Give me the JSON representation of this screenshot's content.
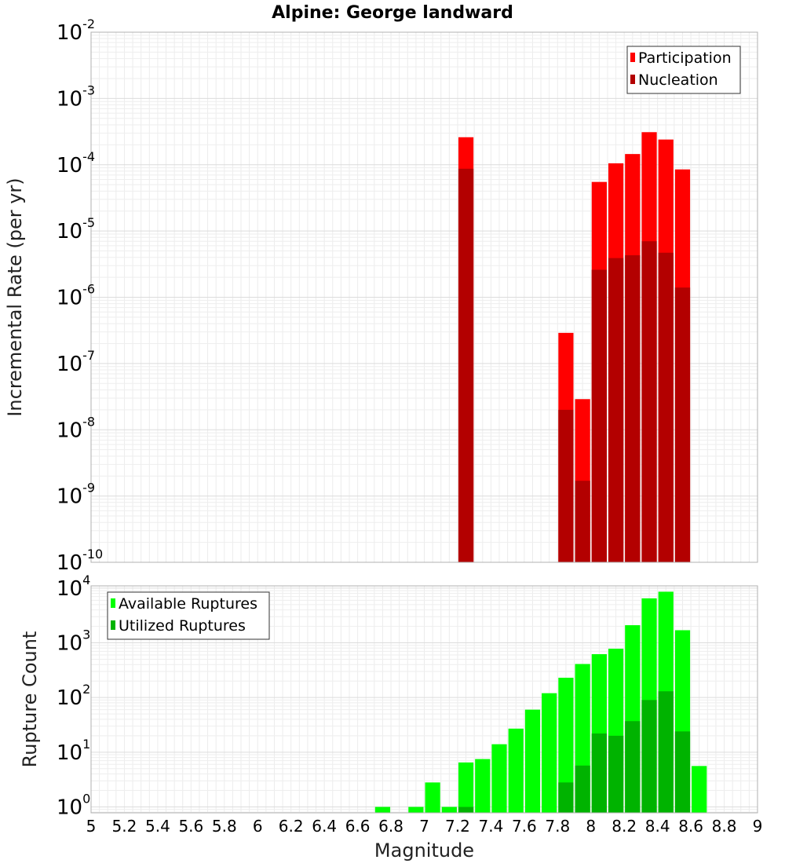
{
  "title": "Alpine: George landward",
  "chart_data": [
    {
      "type": "bar",
      "name": "rate-panel",
      "ylabel": "Incremental Rate (per yr)",
      "yscale": "log",
      "ylim": [
        1e-10,
        0.01
      ],
      "xlim": [
        5,
        9
      ],
      "grid": true,
      "legend_position": "top-right",
      "y_ticks": [
        {
          "base": "10",
          "exp": "-10"
        },
        {
          "base": "10",
          "exp": "-9"
        },
        {
          "base": "10",
          "exp": "-8"
        },
        {
          "base": "10",
          "exp": "-7"
        },
        {
          "base": "10",
          "exp": "-6"
        },
        {
          "base": "10",
          "exp": "-5"
        },
        {
          "base": "10",
          "exp": "-4"
        },
        {
          "base": "10",
          "exp": "-3"
        },
        {
          "base": "10",
          "exp": "-2"
        }
      ],
      "series": [
        {
          "name": "Participation",
          "color": "#ff0000",
          "points": [
            {
              "x": 7.25,
              "y": 0.00026
            },
            {
              "x": 7.85,
              "y": 2.9e-07
            },
            {
              "x": 7.95,
              "y": 2.9e-08
            },
            {
              "x": 8.05,
              "y": 5.5e-05
            },
            {
              "x": 8.15,
              "y": 0.000105
            },
            {
              "x": 8.25,
              "y": 0.000145
            },
            {
              "x": 8.35,
              "y": 0.00031
            },
            {
              "x": 8.45,
              "y": 0.00024
            },
            {
              "x": 8.55,
              "y": 8.5e-05
            }
          ]
        },
        {
          "name": "Nucleation",
          "color": "#b30000",
          "points": [
            {
              "x": 7.25,
              "y": 8.7e-05
            },
            {
              "x": 7.85,
              "y": 2e-08
            },
            {
              "x": 7.95,
              "y": 1.7e-09
            },
            {
              "x": 8.05,
              "y": 2.6e-06
            },
            {
              "x": 8.15,
              "y": 3.9e-06
            },
            {
              "x": 8.25,
              "y": 4.3e-06
            },
            {
              "x": 8.35,
              "y": 7e-06
            },
            {
              "x": 8.45,
              "y": 4.7e-06
            },
            {
              "x": 8.55,
              "y": 1.4e-06
            }
          ]
        }
      ]
    },
    {
      "type": "bar",
      "name": "count-panel",
      "xlabel": "Magnitude",
      "ylabel": "Rupture Count",
      "yscale": "log",
      "ylim": [
        0.78,
        11000
      ],
      "xlim": [
        5,
        9
      ],
      "grid": true,
      "legend_position": "top-left",
      "x_ticks": [
        "5",
        "5.2",
        "5.4",
        "5.6",
        "5.8",
        "6",
        "6.2",
        "6.4",
        "6.6",
        "6.8",
        "7",
        "7.2",
        "7.4",
        "7.6",
        "7.8",
        "8",
        "8.2",
        "8.4",
        "8.6",
        "8.8",
        "9"
      ],
      "y_ticks": [
        {
          "base": "10",
          "exp": "0"
        },
        {
          "base": "10",
          "exp": "1"
        },
        {
          "base": "10",
          "exp": "2"
        },
        {
          "base": "10",
          "exp": "3"
        },
        {
          "base": "10",
          "exp": "4"
        }
      ],
      "series": [
        {
          "name": "Available Ruptures",
          "color": "#00ff00",
          "points": [
            {
              "x": 6.75,
              "y": 1
            },
            {
              "x": 6.95,
              "y": 1
            },
            {
              "x": 7.05,
              "y": 2.8
            },
            {
              "x": 7.15,
              "y": 1
            },
            {
              "x": 7.25,
              "y": 6.5
            },
            {
              "x": 7.35,
              "y": 7.5
            },
            {
              "x": 7.45,
              "y": 14
            },
            {
              "x": 7.55,
              "y": 27
            },
            {
              "x": 7.65,
              "y": 60
            },
            {
              "x": 7.75,
              "y": 120
            },
            {
              "x": 7.85,
              "y": 230
            },
            {
              "x": 7.95,
              "y": 410
            },
            {
              "x": 8.05,
              "y": 620
            },
            {
              "x": 8.15,
              "y": 780
            },
            {
              "x": 8.25,
              "y": 2100
            },
            {
              "x": 8.35,
              "y": 6500
            },
            {
              "x": 8.45,
              "y": 8600
            },
            {
              "x": 8.55,
              "y": 1700
            },
            {
              "x": 8.65,
              "y": 5.6
            }
          ]
        },
        {
          "name": "Utilized Ruptures",
          "color": "#00b300",
          "points": [
            {
              "x": 7.25,
              "y": 1
            },
            {
              "x": 7.85,
              "y": 2.8
            },
            {
              "x": 7.95,
              "y": 5.7
            },
            {
              "x": 8.05,
              "y": 22
            },
            {
              "x": 8.15,
              "y": 20
            },
            {
              "x": 8.25,
              "y": 37
            },
            {
              "x": 8.35,
              "y": 90
            },
            {
              "x": 8.45,
              "y": 130
            },
            {
              "x": 8.55,
              "y": 24
            }
          ]
        }
      ]
    }
  ]
}
